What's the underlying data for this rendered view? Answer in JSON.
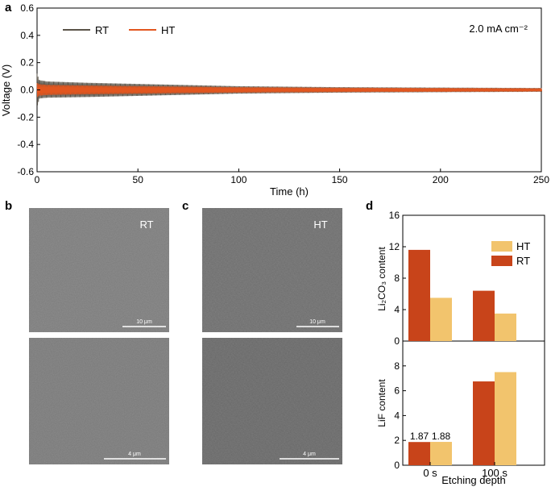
{
  "panel_labels": {
    "a": "a",
    "b": "b",
    "c": "c",
    "d": "d"
  },
  "colors": {
    "RT": "#c8441a",
    "HT": "#f2c46d",
    "voltage_RT": "#5a5348",
    "voltage_HT": "#e2561f"
  },
  "chart_data": [
    {
      "type": "line",
      "panel": "a",
      "xlabel": "Time (h)",
      "ylabel": "Voltage (V)",
      "xlim": [
        0,
        250
      ],
      "ylim": [
        -0.6,
        0.6
      ],
      "xticks": [
        0,
        50,
        100,
        150,
        200,
        250
      ],
      "yticks": [
        -0.6,
        -0.4,
        -0.2,
        0.0,
        0.2,
        0.4,
        0.6
      ],
      "annotation": "2.0 mA cm⁻²",
      "legend_placement": "top-left",
      "series": [
        {
          "name": "RT",
          "x": [
            0,
            1,
            5,
            25,
            55,
            100,
            150,
            200,
            250
          ],
          "envelope_upper": [
            0.12,
            0.07,
            0.06,
            0.05,
            0.04,
            0.025,
            0.018,
            0.015,
            0.012
          ],
          "envelope_lower": [
            -0.11,
            -0.06,
            -0.055,
            -0.05,
            -0.04,
            -0.025,
            -0.018,
            -0.015,
            -0.012
          ]
        },
        {
          "name": "HT",
          "x": [
            0,
            1,
            5,
            25,
            55,
            100,
            150,
            200,
            250
          ],
          "envelope_upper": [
            0.05,
            0.04,
            0.035,
            0.03,
            0.025,
            0.018,
            0.014,
            0.012,
            0.01
          ],
          "envelope_lower": [
            -0.05,
            -0.04,
            -0.035,
            -0.03,
            -0.025,
            -0.018,
            -0.014,
            -0.012,
            -0.01
          ]
        }
      ]
    },
    {
      "type": "bar",
      "panel": "d-top",
      "ylabel": "Li₂CO₃ content",
      "ylim": [
        0,
        16
      ],
      "yticks": [
        0,
        4,
        8,
        12,
        16
      ],
      "categories": [
        "0 s",
        "100 s"
      ],
      "legend_placement": "top-right",
      "series": [
        {
          "name": "HT",
          "values": [
            5.5,
            3.5
          ]
        },
        {
          "name": "RT",
          "values": [
            11.6,
            6.4
          ]
        }
      ]
    },
    {
      "type": "bar",
      "panel": "d-bottom",
      "xlabel": "Etching depth",
      "ylabel": "LiF content",
      "ylim": [
        0,
        10
      ],
      "yticks": [
        0,
        2,
        4,
        6,
        8
      ],
      "categories": [
        "0 s",
        "100 s"
      ],
      "data_labels": [
        "1.87",
        "1.88"
      ],
      "series": [
        {
          "name": "RT",
          "values": [
            1.87,
            6.75
          ]
        },
        {
          "name": "HT",
          "values": [
            1.88,
            7.5
          ]
        }
      ]
    }
  ],
  "micrographs": {
    "b": {
      "label": "RT",
      "scale_top": "10 μm",
      "scale_bottom": "4 μm"
    },
    "c": {
      "label": "HT",
      "scale_top": "10 μm",
      "scale_bottom": "4 μm"
    }
  }
}
